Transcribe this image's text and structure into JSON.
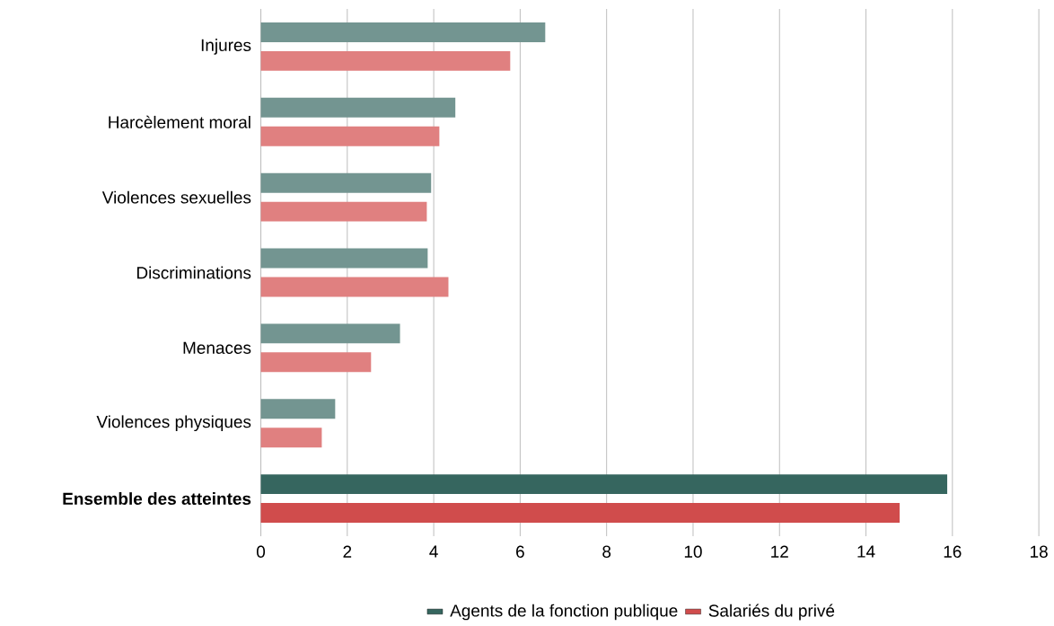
{
  "chart_data": {
    "type": "bar",
    "orientation": "horizontal",
    "categories": [
      "Injures",
      "Harcèlement moral",
      "Violences sexuelles",
      "Discriminations",
      "Menaces",
      "Violences physiques",
      "Ensemble des atteintes"
    ],
    "series": [
      {
        "name": "Agents de la fonction publique",
        "color": "#36665f",
        "colors": [
          "#739591",
          "#739591",
          "#739591",
          "#739591",
          "#739591",
          "#739591",
          "#36665f"
        ],
        "values": [
          6.58,
          4.5,
          3.94,
          3.86,
          3.22,
          1.72,
          15.88
        ]
      },
      {
        "name": "Salariés du privé",
        "color": "#d04c4c",
        "colors": [
          "#e08080",
          "#e08080",
          "#e08080",
          "#e08080",
          "#e08080",
          "#e08080",
          "#d04c4c"
        ],
        "values": [
          5.77,
          4.13,
          3.84,
          4.34,
          2.55,
          1.41,
          14.78
        ]
      }
    ],
    "xlim": [
      0,
      18
    ],
    "xticks": [
      0,
      2,
      4,
      6,
      8,
      10,
      12,
      14,
      16,
      18
    ],
    "grid": "x",
    "legend": "bottom"
  }
}
